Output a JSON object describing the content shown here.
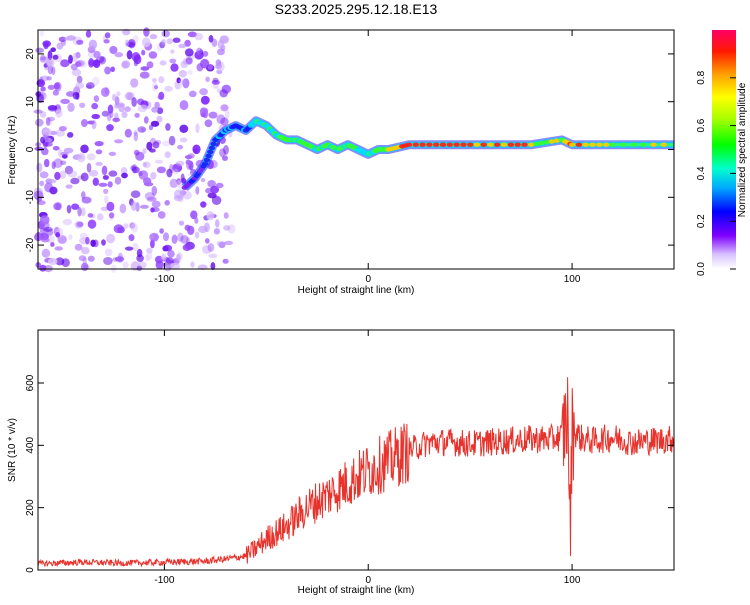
{
  "title": "S233.2025.295.12.18.E13",
  "chart_data": [
    {
      "type": "heatmap",
      "name": "spectrogram",
      "xlabel": "Height of straight line (km)",
      "ylabel": "Frequency (Hz)",
      "xlim": [
        -162,
        150
      ],
      "ylim": [
        -25,
        25
      ],
      "x_ticks": [
        -100,
        0,
        100
      ],
      "y_ticks": [
        -20,
        -10,
        0,
        10,
        20
      ],
      "colorbar": {
        "label": "Normalized spectral amplitude",
        "range": [
          0,
          1
        ],
        "ticks": [
          "0.0",
          "0.2",
          "0.4",
          "0.6",
          "0.8"
        ]
      },
      "ridge_x": [
        -90,
        -85,
        -80,
        -75,
        -70,
        -65,
        -60,
        -55,
        -50,
        -45,
        -40,
        -35,
        -30,
        -25,
        -20,
        -15,
        -10,
        -5,
        0,
        5,
        10,
        20,
        40,
        60,
        80,
        95,
        100,
        120,
        150
      ],
      "ridge_freq": [
        -8,
        -6,
        -3,
        2,
        4,
        5,
        4,
        6,
        5,
        3,
        2,
        2,
        1,
        0,
        1,
        0,
        1,
        0,
        -1,
        0,
        0,
        1,
        1,
        1,
        1,
        2,
        1,
        1,
        1
      ],
      "ridge_amplitude": [
        0.25,
        0.3,
        0.35,
        0.4,
        0.45,
        0.4,
        0.45,
        0.55,
        0.6,
        0.6,
        0.7,
        0.65,
        0.7,
        0.6,
        0.65,
        0.6,
        0.6,
        0.55,
        0.6,
        0.65,
        0.75,
        0.9,
        0.95,
        0.85,
        0.8,
        0.7,
        0.85,
        0.75,
        0.8
      ]
    },
    {
      "type": "line",
      "name": "snr",
      "xlabel": "Height of straight line (km)",
      "ylabel": "SNR (10 * v/v)",
      "xlim": [
        -162,
        150
      ],
      "ylim": [
        0,
        770
      ],
      "x_ticks": [
        -100,
        0,
        100
      ],
      "y_ticks": [
        0,
        200,
        400,
        600
      ],
      "color": "#e8322c",
      "x": [
        -162,
        -140,
        -120,
        -100,
        -80,
        -70,
        -60,
        -55,
        -50,
        -45,
        -40,
        -35,
        -30,
        -20,
        -10,
        0,
        10,
        20,
        30,
        40,
        50,
        60,
        70,
        80,
        90,
        95,
        98,
        99,
        100,
        105,
        110,
        120,
        130,
        140,
        150
      ],
      "y": [
        20,
        25,
        22,
        25,
        28,
        35,
        45,
        70,
        100,
        120,
        140,
        170,
        200,
        240,
        280,
        320,
        350,
        385,
        410,
        410,
        405,
        410,
        415,
        420,
        420,
        430,
        500,
        110,
        450,
        420,
        415,
        425,
        410,
        415,
        420
      ]
    }
  ]
}
